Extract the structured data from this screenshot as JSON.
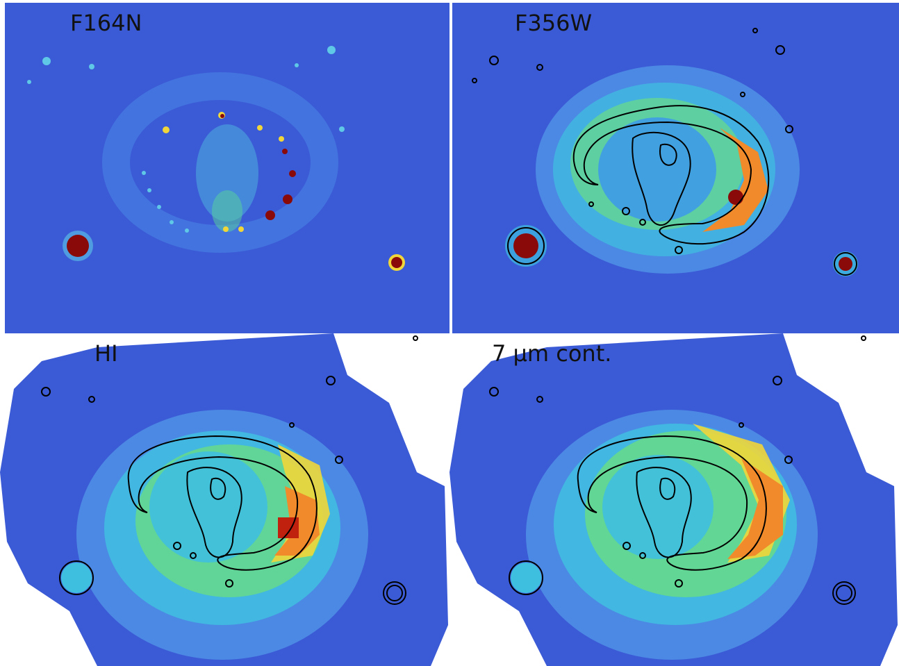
{
  "panels": [
    {
      "label": "F164N",
      "contours": false,
      "pixelated": false
    },
    {
      "label": "F356W",
      "contours": true,
      "pixelated": false
    },
    {
      "label": "HI",
      "contours": true,
      "pixelated": true
    },
    {
      "label": "7 μm cont.",
      "contours": true,
      "pixelated": true
    }
  ],
  "colors": {
    "background": "#3b5bd6",
    "low": "#4a7ae8",
    "mid": "#3fbfe0",
    "high_green": "#6fe07a",
    "high_yellow": "#f1d63a",
    "high_orange": "#f08a2a",
    "peak": "#8a0a0a",
    "contour": "#000000"
  }
}
